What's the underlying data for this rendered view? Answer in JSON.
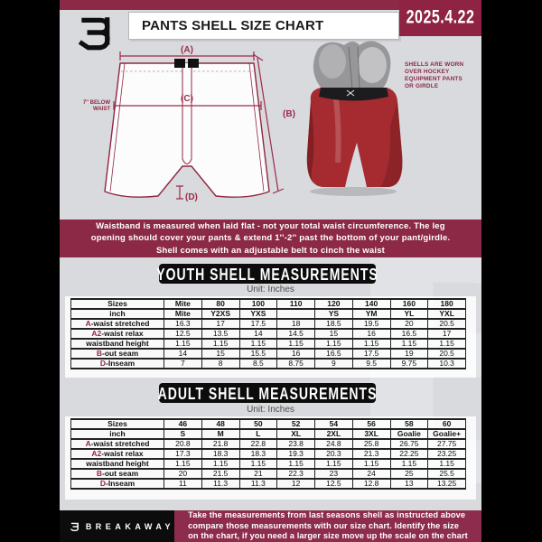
{
  "colors": {
    "maroon": "#8b2946",
    "black_bar": "#0c0c0c",
    "doc_bg": "#d9dadd",
    "accent_red": "#9c2b49"
  },
  "header": {
    "title": "PANTS SHELL SIZE CHART",
    "date": "2025.4.22"
  },
  "watermark_letter": "B",
  "diagram": {
    "labels": {
      "a": "(A)",
      "b": "(B)",
      "c": "(C)",
      "d": "(D)"
    },
    "below_waist": "7'' BELOW\nWAIST",
    "shell_note": "SHELLS ARE WORN\nOVER HOCKEY\nEQUIPMENT PANTS\nOR GIRDLE"
  },
  "banner": "Waistband is measured when laid flat - not your total waist circumference. The leg\nopening should cover your pants & extend 1''-2'' past the bottom of your pant/girdle.\nShell comes with an adjustable belt to cinch the waist",
  "youth": {
    "heading": "YOUTH SHELL MEASUREMENTS",
    "unit": "Unit: Inches",
    "rows": [
      {
        "label": "Sizes",
        "bold_values": true,
        "values": [
          "Mite",
          "80",
          "100",
          "110",
          "120",
          "140",
          "160",
          "180"
        ]
      },
      {
        "label": "inch",
        "bold_values": true,
        "values": [
          "Mite",
          "Y2XS",
          "YXS",
          "",
          "YS",
          "YM",
          "YL",
          "YXL"
        ]
      },
      {
        "prefix": "A",
        "label": "-waist stretched",
        "values": [
          "16.3",
          "17",
          "17.5",
          "18",
          "18.5",
          "19.5",
          "20",
          "20.5"
        ]
      },
      {
        "prefix": "A2",
        "label": "-waist relax",
        "values": [
          "12.5",
          "13.5",
          "14",
          "14.5",
          "15",
          "16",
          "16.5",
          "17"
        ]
      },
      {
        "label": "waistband height",
        "values": [
          "1.15",
          "1.15",
          "1.15",
          "1.15",
          "1.15",
          "1.15",
          "1.15",
          "1.15"
        ]
      },
      {
        "prefix": "B",
        "label": "-out seam",
        "values": [
          "14",
          "15",
          "15.5",
          "16",
          "16.5",
          "17.5",
          "19",
          "20.5"
        ]
      },
      {
        "prefix": "D",
        "label": "-Inseam",
        "values": [
          "7",
          "8",
          "8.5",
          "8.75",
          "9",
          "9.5",
          "9.75",
          "10.3"
        ]
      }
    ]
  },
  "adult": {
    "heading": "ADULT SHELL MEASUREMENTS",
    "unit": "Unit: Inches",
    "rows": [
      {
        "label": "Sizes",
        "bold_values": true,
        "values": [
          "46",
          "48",
          "50",
          "52",
          "54",
          "56",
          "58",
          "60"
        ]
      },
      {
        "label": "inch",
        "bold_values": true,
        "values": [
          "S",
          "M",
          "L",
          "XL",
          "2XL",
          "3XL",
          "Goalie",
          "Goalie+"
        ]
      },
      {
        "prefix": "A",
        "label": "-waist stretched",
        "values": [
          "20.8",
          "21.8",
          "22.8",
          "23.8",
          "24.8",
          "25.8",
          "26.75",
          "27.75"
        ]
      },
      {
        "prefix": "A2",
        "label": "-waist relax",
        "values": [
          "17.3",
          "18.3",
          "18.3",
          "19.3",
          "20.3",
          "21.3",
          "22.25",
          "23.25"
        ]
      },
      {
        "label": "waistband height",
        "values": [
          "1.15",
          "1.15",
          "1.15",
          "1.15",
          "1.15",
          "1.15",
          "1.15",
          "1.15"
        ]
      },
      {
        "prefix": "B",
        "label": "-out seam",
        "values": [
          "20",
          "21.5",
          "21",
          "22.3",
          "23",
          "24",
          "25",
          "25.5"
        ]
      },
      {
        "prefix": "D",
        "label": "-Inseam",
        "values": [
          "11",
          "11.3",
          "11.3",
          "12",
          "12.5",
          "12.8",
          "13",
          "13.25"
        ]
      }
    ]
  },
  "footer": {
    "brand": "BREAKAWAY",
    "note": "Take the measurements from last seasons shell as instructed above\ncompare those measurements  with our size chart. Identify the size\non the chart, if you need a larger size move up the scale on the chart"
  }
}
